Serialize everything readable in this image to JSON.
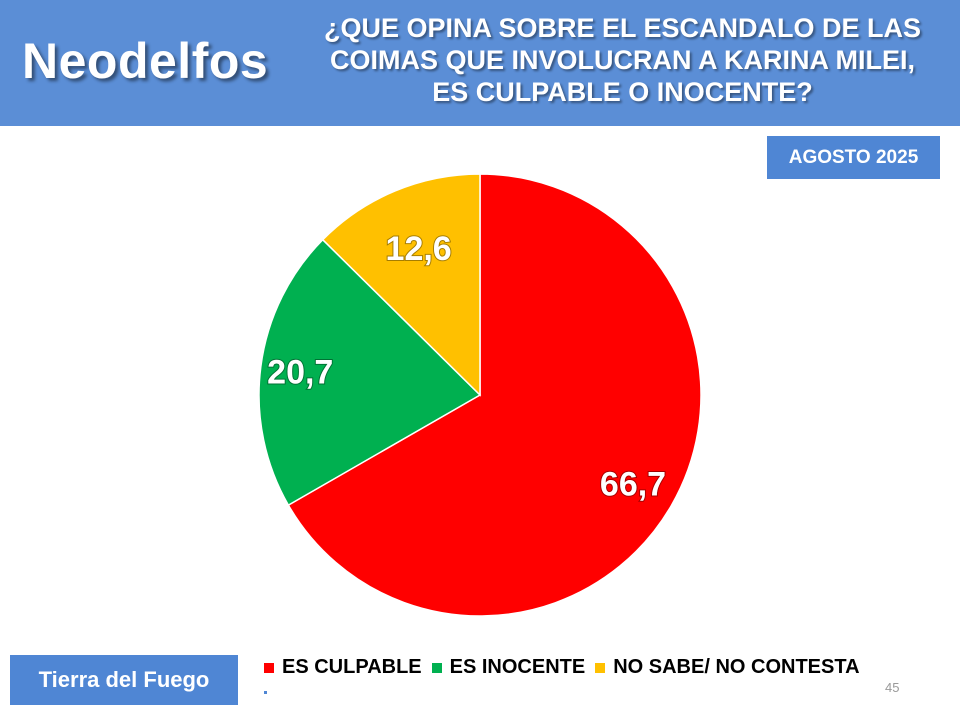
{
  "header": {
    "brand": "Neodelfos",
    "question_lines": [
      "¿QUE OPINA SOBRE EL ESCANDALO DE LAS",
      "COIMAS QUE INVOLUCRAN A KARINA MILEI,",
      "ES CULPABLE O INOCENTE?"
    ]
  },
  "date_badge": "AGOSTO 2025",
  "region": "Tierra del Fuego",
  "page_number": "45",
  "colors": {
    "header_bg": "#5b8ed6",
    "badge_bg": "#4f86d4",
    "culpable": "#ff0000",
    "inocente": "#00b050",
    "ns_nc": "#ffc000"
  },
  "chart_data": {
    "type": "pie",
    "categories": [
      "ES CULPABLE",
      "ES INOCENTE",
      "NO SABE/ NO CONTESTA"
    ],
    "values": [
      66.7,
      20.7,
      12.6
    ],
    "value_labels": [
      "66,7",
      "20,7",
      "12,6"
    ],
    "colors": [
      "#ff0000",
      "#00b050",
      "#ffc000"
    ],
    "start": "12 o'clock, clockwise",
    "legend_position": "bottom"
  }
}
